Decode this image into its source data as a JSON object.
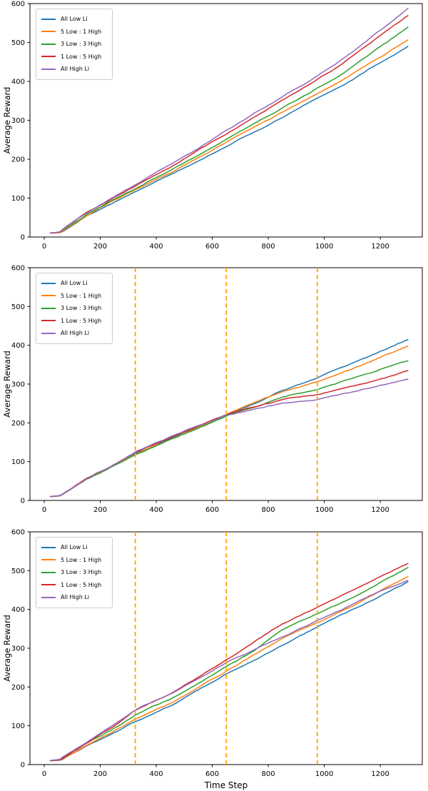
{
  "figure": {
    "background": "#ffffff",
    "num_subplots": 3
  },
  "colors": {
    "blue": "#1f77b4",
    "orange": "#ff7f0e",
    "green": "#2ca02c",
    "red": "#d62728",
    "purple": "#9467bd",
    "vline_orange": "#ffa500",
    "axis": "#000000",
    "legend_border": "#cccccc"
  },
  "legend_labels": [
    "All Low Li",
    "5 Low : 1 High",
    "3 Low : 3 High",
    "1 Low : 5 High",
    "All High Li"
  ],
  "axes": {
    "xlabel": "Time Step",
    "ylabel": "Average Reward",
    "xticks": [
      0,
      200,
      400,
      600,
      800,
      1000,
      1200
    ],
    "yticks": [
      0,
      100,
      200,
      300,
      400,
      500,
      600
    ],
    "xlim": [
      -51,
      1350
    ],
    "ylim": [
      0,
      600
    ],
    "grid": false,
    "legend_position": "upper-left"
  },
  "chart_data": [
    {
      "type": "line",
      "title": "",
      "xlabel": "",
      "ylabel": "Average Reward",
      "xlim": [
        -51,
        1350
      ],
      "ylim": [
        0,
        600
      ],
      "vlines": [],
      "x": [
        20,
        55,
        150,
        250,
        350,
        450,
        550,
        650,
        750,
        850,
        950,
        1050,
        1175,
        1300
      ],
      "series": [
        {
          "name": "All Low Li",
          "color": "blue",
          "values": [
            10,
            12,
            55,
            92,
            128,
            163,
            198,
            235,
            272,
            308,
            345,
            382,
            436,
            490
          ]
        },
        {
          "name": "5 Low : 1 High",
          "color": "orange",
          "values": [
            10,
            12,
            56,
            94,
            131,
            167,
            204,
            242,
            280,
            318,
            356,
            394,
            450,
            506
          ]
        },
        {
          "name": "3 Low : 3 High",
          "color": "green",
          "values": [
            10,
            12,
            58,
            97,
            136,
            174,
            213,
            253,
            293,
            333,
            374,
            415,
            476,
            537
          ]
        },
        {
          "name": "1 Low : 5 High",
          "color": "red",
          "values": [
            10,
            12,
            60,
            100,
            141,
            181,
            222,
            264,
            307,
            349,
            392,
            436,
            502,
            568
          ]
        },
        {
          "name": "All High Li",
          "color": "purple",
          "values": [
            10,
            13,
            62,
            103,
            145,
            187,
            229,
            273,
            317,
            361,
            405,
            450,
            518,
            586
          ]
        }
      ]
    },
    {
      "type": "line",
      "title": "",
      "xlabel": "",
      "ylabel": "Average Reward",
      "xlim": [
        -51,
        1350
      ],
      "ylim": [
        0,
        600
      ],
      "vlines": [
        325,
        650,
        975
      ],
      "x": [
        20,
        55,
        150,
        250,
        325,
        450,
        550,
        650,
        750,
        850,
        975,
        1100,
        1200,
        1300
      ],
      "series": [
        {
          "name": "All Low Li",
          "color": "blue",
          "values": [
            10,
            12,
            55,
            92,
            121,
            160,
            191,
            220,
            252,
            284,
            315,
            352,
            382,
            414
          ]
        },
        {
          "name": "5 Low : 1 High",
          "color": "orange",
          "values": [
            10,
            12,
            55,
            92,
            120,
            159,
            190,
            219,
            250,
            280,
            308,
            342,
            371,
            401
          ]
        },
        {
          "name": "3 Low : 3 High",
          "color": "green",
          "values": [
            10,
            12,
            55,
            92,
            120,
            158,
            189,
            218,
            243,
            266,
            286,
            312,
            335,
            359
          ]
        },
        {
          "name": "1 Low : 5 High",
          "color": "red",
          "values": [
            10,
            12,
            56,
            93,
            122,
            159,
            190,
            219,
            240,
            259,
            270,
            292,
            312,
            333
          ]
        },
        {
          "name": "All High Li",
          "color": "purple",
          "values": [
            10,
            13,
            58,
            95,
            127,
            163,
            192,
            221,
            238,
            253,
            262,
            282,
            299,
            316
          ]
        }
      ]
    },
    {
      "type": "line",
      "title": "",
      "xlabel": "Time Step",
      "ylabel": "Average Reward",
      "xlim": [
        -51,
        1350
      ],
      "ylim": [
        0,
        600
      ],
      "vlines": [
        325,
        650,
        975
      ],
      "x": [
        20,
        55,
        150,
        250,
        325,
        450,
        550,
        650,
        750,
        850,
        975,
        1100,
        1200,
        1300
      ],
      "series": [
        {
          "name": "All Low Li",
          "color": "blue",
          "values": [
            10,
            12,
            50,
            85,
            113,
            152,
            191,
            232,
            271,
            310,
            354,
            397,
            433,
            469
          ]
        },
        {
          "name": "5 Low : 1 High",
          "color": "orange",
          "values": [
            10,
            12,
            52,
            89,
            120,
            160,
            200,
            241,
            283,
            324,
            368,
            410,
            446,
            482
          ]
        },
        {
          "name": "3 Low : 3 High",
          "color": "green",
          "values": [
            10,
            12,
            54,
            93,
            127,
            168,
            210,
            253,
            293,
            346,
            391,
            433,
            470,
            508
          ]
        },
        {
          "name": "1 Low : 5 High",
          "color": "red",
          "values": [
            10,
            13,
            57,
            102,
            143,
            185,
            228,
            272,
            318,
            364,
            408,
            452,
            487,
            522
          ]
        },
        {
          "name": "All High Li",
          "color": "purple",
          "values": [
            10,
            13,
            57,
            101,
            141,
            182,
            224,
            265,
            297,
            330,
            371,
            412,
            445,
            477
          ]
        }
      ]
    }
  ]
}
